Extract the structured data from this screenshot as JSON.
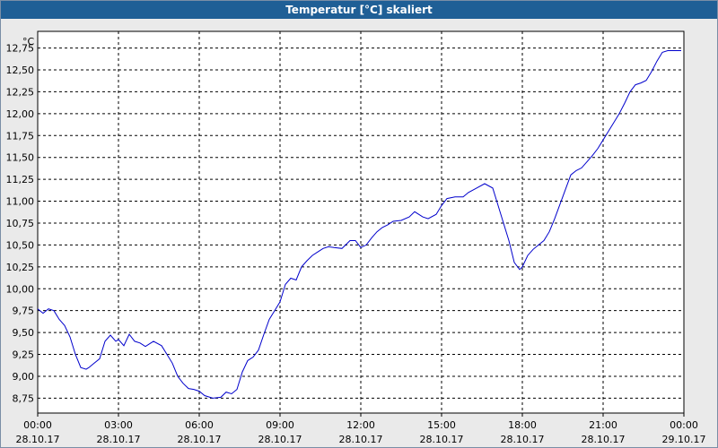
{
  "window": {
    "title": "Temperatur [°C] skaliert"
  },
  "chart_data": {
    "type": "line",
    "title": "Temperatur [°C] skaliert",
    "ylabel": "°C",
    "xlabel": "",
    "ylim": [
      8.58,
      12.94
    ],
    "xlim_hours": [
      0,
      24
    ],
    "grid": true,
    "line_color": "#0000cc",
    "yticks": [
      "8,75",
      "9,00",
      "9,25",
      "9,50",
      "9,75",
      "10,00",
      "10,25",
      "10,50",
      "10,75",
      "11,00",
      "11,25",
      "11,50",
      "11,75",
      "12,00",
      "12,25",
      "12,50",
      "12,75"
    ],
    "ytick_values": [
      8.75,
      9.0,
      9.25,
      9.5,
      9.75,
      10.0,
      10.25,
      10.5,
      10.75,
      11.0,
      11.25,
      11.5,
      11.75,
      12.0,
      12.25,
      12.5,
      12.75
    ],
    "xticks": [
      {
        "time": "00:00",
        "date": "28.10.17"
      },
      {
        "time": "03:00",
        "date": "28.10.17"
      },
      {
        "time": "06:00",
        "date": "28.10.17"
      },
      {
        "time": "09:00",
        "date": "28.10.17"
      },
      {
        "time": "12:00",
        "date": "28.10.17"
      },
      {
        "time": "15:00",
        "date": "28.10.17"
      },
      {
        "time": "18:00",
        "date": "28.10.17"
      },
      {
        "time": "21:00",
        "date": "28.10.17"
      },
      {
        "time": "00:00",
        "date": "29.10.17"
      }
    ],
    "series": [
      {
        "x": [
          0.0,
          0.2,
          0.4,
          0.6,
          0.8,
          1.0,
          1.2,
          1.4,
          1.6,
          1.8,
          1.9,
          2.1,
          2.3,
          2.5,
          2.7,
          2.9,
          3.0,
          3.2,
          3.4,
          3.6,
          3.8,
          4.0,
          4.3,
          4.6,
          4.8,
          5.0,
          5.2,
          5.4,
          5.6,
          5.8,
          6.0,
          6.2,
          6.5,
          6.8,
          7.0,
          7.2,
          7.4,
          7.6,
          7.8,
          8.0,
          8.2,
          8.4,
          8.6,
          8.8,
          9.0,
          9.2,
          9.4,
          9.6,
          9.8,
          10.0,
          10.2,
          10.4,
          10.6,
          10.8,
          11.0,
          11.3,
          11.6,
          11.8,
          12.0,
          12.2,
          12.4,
          12.6,
          12.8,
          13.0,
          13.2,
          13.5,
          13.8,
          14.0,
          14.3,
          14.5,
          14.8,
          15.0,
          15.2,
          15.5,
          15.8,
          16.0,
          16.3,
          16.6,
          16.9,
          17.1,
          17.3,
          17.5,
          17.7,
          17.9,
          18.0,
          18.2,
          18.4,
          18.6,
          18.8,
          19.0,
          19.2,
          19.5,
          19.8,
          20.0,
          20.2,
          20.4,
          20.6,
          20.8,
          21.0,
          21.2,
          21.4,
          21.6,
          21.8,
          22.0,
          22.2,
          22.4,
          22.6,
          22.8,
          23.0,
          23.2,
          23.4,
          23.6,
          23.8,
          23.9
        ],
        "values": [
          9.77,
          9.72,
          9.77,
          9.75,
          9.65,
          9.58,
          9.45,
          9.25,
          9.1,
          9.08,
          9.1,
          9.15,
          9.2,
          9.4,
          9.47,
          9.4,
          9.42,
          9.35,
          9.48,
          9.4,
          9.38,
          9.34,
          9.4,
          9.35,
          9.25,
          9.15,
          9.0,
          8.92,
          8.86,
          8.85,
          8.83,
          8.78,
          8.75,
          8.76,
          8.82,
          8.8,
          8.85,
          9.05,
          9.18,
          9.22,
          9.3,
          9.48,
          9.65,
          9.75,
          9.85,
          10.05,
          10.12,
          10.1,
          10.25,
          10.32,
          10.38,
          10.42,
          10.46,
          10.48,
          10.47,
          10.46,
          10.55,
          10.55,
          10.47,
          10.5,
          10.58,
          10.65,
          10.7,
          10.73,
          10.77,
          10.78,
          10.82,
          10.88,
          10.82,
          10.8,
          10.85,
          10.95,
          11.03,
          11.05,
          11.05,
          11.1,
          11.15,
          11.2,
          11.15,
          10.95,
          10.75,
          10.55,
          10.3,
          10.22,
          10.25,
          10.38,
          10.45,
          10.5,
          10.55,
          10.65,
          10.8,
          11.05,
          11.3,
          11.35,
          11.38,
          11.45,
          11.52,
          11.6,
          11.7,
          11.8,
          11.9,
          12.0,
          12.12,
          12.25,
          12.33,
          12.35,
          12.38,
          12.48,
          12.6,
          12.7,
          12.72,
          12.72,
          12.72,
          12.72
        ]
      }
    ]
  }
}
